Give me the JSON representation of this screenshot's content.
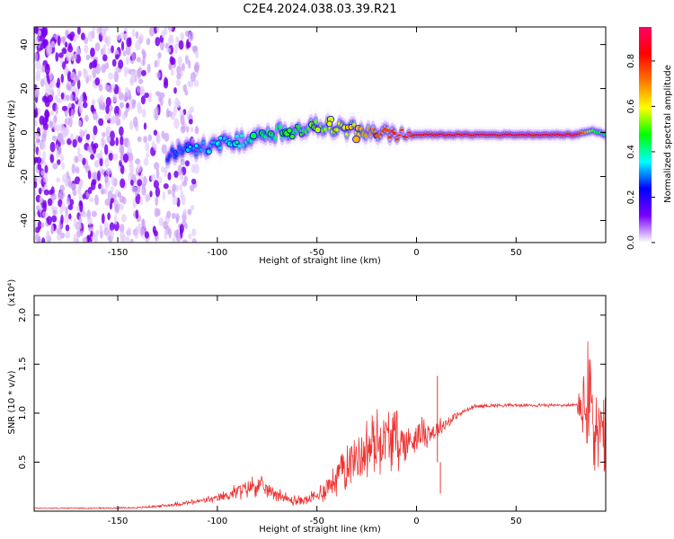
{
  "title": "C2E4.2024.038.03.39.R21",
  "chart_data": [
    {
      "type": "heatmap",
      "xlabel": "Height of straight line (km)",
      "ylabel": "Frequency (Hz)",
      "xlim": [
        -192,
        95
      ],
      "ylim": [
        -50,
        48
      ],
      "xticks": [
        -150,
        -100,
        -50,
        0,
        50
      ],
      "yticks": [
        -40,
        -20,
        0,
        20,
        40
      ],
      "colorbar": {
        "label": "Normalized spectral amplitude",
        "range": [
          0,
          0.95
        ],
        "ticks": [
          0.0,
          0.2,
          0.4,
          0.6,
          0.8
        ],
        "tick_labels": [
          "0.0",
          "0.2",
          "0.4",
          "0.6",
          "0.8"
        ],
        "colors": [
          "#ffffff",
          "#7a00ff",
          "#0000ff",
          "#00ffff",
          "#00ff00",
          "#ffff00",
          "#ff7700",
          "#ff0000",
          "#ff0066"
        ]
      },
      "ridge": {
        "x": [
          -125,
          -110,
          -100,
          -90,
          -80,
          -70,
          -60,
          -50,
          -40,
          -30,
          -20,
          -10,
          0,
          10,
          20,
          30,
          40,
          50,
          60,
          70,
          80,
          88,
          95
        ],
        "frequency": [
          -10,
          -7,
          -5,
          -4,
          -2,
          0,
          2,
          3,
          2,
          1,
          0,
          -1,
          -1,
          -1,
          -1,
          -1,
          -1,
          -1,
          -1,
          -1,
          -1,
          1,
          -1
        ],
        "amplitude": [
          0.25,
          0.3,
          0.32,
          0.35,
          0.4,
          0.42,
          0.45,
          0.5,
          0.55,
          0.6,
          0.7,
          0.8,
          0.82,
          0.85,
          0.85,
          0.85,
          0.85,
          0.85,
          0.85,
          0.85,
          0.88,
          0.5,
          0.4
        ]
      },
      "noise_region": {
        "x_range": [
          -192,
          -110
        ],
        "frequency_range": [
          -50,
          48
        ],
        "amplitude": 0.12
      }
    },
    {
      "type": "line",
      "xlabel": "Height of straight line (km)",
      "ylabel": "SNR (10 * v/v)",
      "multiplier_label": "(x10⁴)",
      "xlim": [
        -192,
        95
      ],
      "ylim": [
        0,
        2.2
      ],
      "xticks": [
        -150,
        -100,
        -50,
        0,
        50
      ],
      "yticks": [
        0.5,
        1.0,
        1.5,
        2.0
      ],
      "ytick_labels": [
        "0.5",
        "1.0",
        "1.5",
        "2.0"
      ],
      "color": "#ee3333",
      "series": [
        {
          "x": [
            -192,
            -180,
            -160,
            -140,
            -130,
            -120,
            -110,
            -100,
            -95,
            -90,
            -85,
            -80,
            -75,
            -70,
            -65,
            -60,
            -55,
            -50,
            -45,
            -40,
            -35,
            -30,
            -25,
            -20,
            -15,
            -10,
            -5,
            0,
            5,
            10,
            15,
            20,
            25,
            30,
            40,
            50,
            60,
            70,
            80,
            85,
            88,
            90,
            95
          ],
          "y": [
            0.03,
            0.03,
            0.03,
            0.035,
            0.05,
            0.07,
            0.1,
            0.13,
            0.16,
            0.2,
            0.24,
            0.27,
            0.22,
            0.18,
            0.12,
            0.1,
            0.12,
            0.15,
            0.25,
            0.35,
            0.5,
            0.55,
            0.62,
            0.7,
            0.75,
            0.72,
            0.68,
            0.78,
            0.8,
            0.82,
            0.9,
            0.97,
            1.03,
            1.07,
            1.08,
            1.08,
            1.08,
            1.08,
            1.08,
            1.05,
            1.1,
            0.8,
            0.7
          ],
          "noise": [
            0.004,
            0.004,
            0.005,
            0.006,
            0.01,
            0.015,
            0.02,
            0.03,
            0.04,
            0.06,
            0.07,
            0.08,
            0.06,
            0.05,
            0.04,
            0.04,
            0.04,
            0.05,
            0.1,
            0.15,
            0.18,
            0.2,
            0.22,
            0.23,
            0.22,
            0.2,
            0.18,
            0.12,
            0.1,
            0.08,
            0.05,
            0.03,
            0.02,
            0.015,
            0.012,
            0.012,
            0.012,
            0.012,
            0.012,
            0.45,
            0.55,
            0.5,
            0.4
          ]
        }
      ],
      "annotations": [
        {
          "x": 10.5,
          "y": 1.38
        },
        {
          "x": 12,
          "y": 0.18
        }
      ]
    }
  ]
}
